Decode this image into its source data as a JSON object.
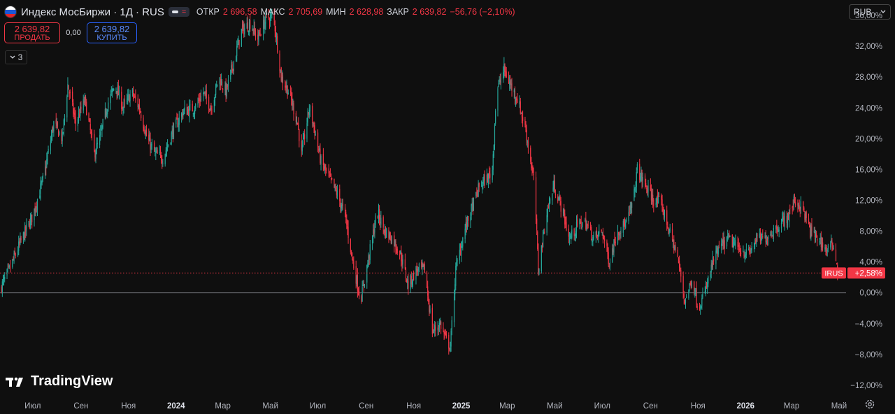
{
  "header": {
    "symbol_title": "Индекс МосБиржи · 1Д · RUS",
    "ohlc": [
      {
        "label": "ОТКР",
        "value": "2 696,58"
      },
      {
        "label": "МАКС",
        "value": "2 705,69"
      },
      {
        "label": "МИН",
        "value": "2 628,98"
      },
      {
        "label": "ЗАКР",
        "value": "2 639,82"
      }
    ],
    "change": "−56,76 (−2,10%)",
    "pill_icon": "compare-icon",
    "pill_symbol": "≈"
  },
  "trade": {
    "sell_price": "2 639,82",
    "sell_label": "ПРОДАТЬ",
    "spread": "0,00",
    "buy_price": "2 639,82",
    "buy_label": "КУПИТЬ"
  },
  "indicators_count": "3",
  "currency": "RUB",
  "branding": "TradingView",
  "colors": {
    "up": "#26a69a",
    "down": "#f23645",
    "background": "#0f0f0f",
    "last_price": "#f23645"
  },
  "chart_data": {
    "type": "candlestick",
    "symbol": "IRUS",
    "last_value_label": "+2,58%",
    "y_axis": {
      "unit": "%",
      "range": [
        -13,
        38
      ],
      "ticks": [
        -12,
        -8,
        -4,
        0,
        4,
        8,
        12,
        16,
        20,
        24,
        28,
        32,
        36
      ],
      "tick_labels": [
        "−12,00%",
        "−8,00%",
        "−4,00%",
        "0,00%",
        "4,00%",
        "8,00%",
        "12,00%",
        "16,00%",
        "20,00%",
        "24,00%",
        "28,00%",
        "32,00%",
        "36,00%"
      ]
    },
    "x_axis": {
      "range": [
        "2023-05-20",
        "2026-05-10"
      ],
      "ticks": [
        {
          "date": "2023-07-01",
          "label": "Июл",
          "bold": false
        },
        {
          "date": "2023-09-01",
          "label": "Сен",
          "bold": false
        },
        {
          "date": "2023-11-01",
          "label": "Ноя",
          "bold": false
        },
        {
          "date": "2024-01-01",
          "label": "2024",
          "bold": true
        },
        {
          "date": "2024-03-01",
          "label": "Мар",
          "bold": false
        },
        {
          "date": "2024-05-01",
          "label": "Май",
          "bold": false
        },
        {
          "date": "2024-07-01",
          "label": "Июл",
          "bold": false
        },
        {
          "date": "2024-09-01",
          "label": "Сен",
          "bold": false
        },
        {
          "date": "2024-11-01",
          "label": "Ноя",
          "bold": false
        },
        {
          "date": "2025-01-01",
          "label": "2025",
          "bold": true
        },
        {
          "date": "2025-03-01",
          "label": "Мар",
          "bold": false
        },
        {
          "date": "2025-05-01",
          "label": "Май",
          "bold": false
        },
        {
          "date": "2025-07-01",
          "label": "Июл",
          "bold": false
        },
        {
          "date": "2025-09-01",
          "label": "Сен",
          "bold": false
        },
        {
          "date": "2025-11-01",
          "label": "Ноя",
          "bold": false
        },
        {
          "date": "2026-01-01",
          "label": "2026",
          "bold": true
        },
        {
          "date": "2026-03-01",
          "label": "Мар",
          "bold": false
        },
        {
          "date": "2026-05-01",
          "label": "Май",
          "bold": false
        }
      ]
    },
    "baseline": 0,
    "last_value": 2.58,
    "close_path": [
      [
        "2023-05-20",
        0.5
      ],
      [
        "2023-06-01",
        3
      ],
      [
        "2023-06-15",
        6.5
      ],
      [
        "2023-07-01",
        10
      ],
      [
        "2023-07-15",
        15
      ],
      [
        "2023-07-28",
        22
      ],
      [
        "2023-08-08",
        20
      ],
      [
        "2023-08-15",
        27
      ],
      [
        "2023-08-25",
        22
      ],
      [
        "2023-09-06",
        25
      ],
      [
        "2023-09-18",
        18
      ],
      [
        "2023-09-25",
        20
      ],
      [
        "2023-10-05",
        24.5
      ],
      [
        "2023-10-15",
        27
      ],
      [
        "2023-10-25",
        24
      ],
      [
        "2023-11-05",
        26
      ],
      [
        "2023-11-15",
        24
      ],
      [
        "2023-11-25",
        20
      ],
      [
        "2023-12-05",
        18
      ],
      [
        "2023-12-15",
        17.5
      ],
      [
        "2023-12-28",
        21
      ],
      [
        "2024-01-10",
        23.5
      ],
      [
        "2024-01-25",
        24
      ],
      [
        "2024-02-05",
        26
      ],
      [
        "2024-02-15",
        24
      ],
      [
        "2024-02-25",
        28
      ],
      [
        "2024-03-05",
        26
      ],
      [
        "2024-03-15",
        30
      ],
      [
        "2024-03-25",
        34
      ],
      [
        "2024-04-05",
        35
      ],
      [
        "2024-04-15",
        33
      ],
      [
        "2024-04-25",
        35.5
      ],
      [
        "2024-05-05",
        36
      ],
      [
        "2024-05-15",
        28
      ],
      [
        "2024-05-25",
        26
      ],
      [
        "2024-06-05",
        22
      ],
      [
        "2024-06-10",
        18
      ],
      [
        "2024-06-20",
        24
      ],
      [
        "2024-06-25",
        22
      ],
      [
        "2024-07-05",
        17
      ],
      [
        "2024-07-15",
        15
      ],
      [
        "2024-07-25",
        13
      ],
      [
        "2024-08-05",
        10
      ],
      [
        "2024-08-15",
        4
      ],
      [
        "2024-08-25",
        -1
      ],
      [
        "2024-09-05",
        5
      ],
      [
        "2024-09-15",
        10.5
      ],
      [
        "2024-09-25",
        8
      ],
      [
        "2024-10-05",
        7
      ],
      [
        "2024-10-15",
        5
      ],
      [
        "2024-10-25",
        1
      ],
      [
        "2024-11-05",
        3
      ],
      [
        "2024-11-15",
        3
      ],
      [
        "2024-11-25",
        -5
      ],
      [
        "2024-12-05",
        -4
      ],
      [
        "2024-12-12",
        -6
      ],
      [
        "2024-12-18",
        -7
      ],
      [
        "2024-12-25",
        3
      ],
      [
        "2025-01-05",
        8
      ],
      [
        "2025-01-15",
        11
      ],
      [
        "2025-01-25",
        14
      ],
      [
        "2025-02-05",
        15
      ],
      [
        "2025-02-10",
        16
      ],
      [
        "2025-02-15",
        26
      ],
      [
        "2025-02-25",
        29
      ],
      [
        "2025-03-05",
        27
      ],
      [
        "2025-03-15",
        25
      ],
      [
        "2025-03-25",
        21
      ],
      [
        "2025-04-05",
        14
      ],
      [
        "2025-04-10",
        3
      ],
      [
        "2025-04-20",
        10
      ],
      [
        "2025-04-30",
        14
      ],
      [
        "2025-05-10",
        11
      ],
      [
        "2025-05-20",
        7
      ],
      [
        "2025-06-01",
        9
      ],
      [
        "2025-06-10",
        9
      ],
      [
        "2025-06-20",
        7
      ],
      [
        "2025-07-01",
        8
      ],
      [
        "2025-07-10",
        4
      ],
      [
        "2025-07-20",
        8
      ],
      [
        "2025-08-01",
        9
      ],
      [
        "2025-08-10",
        12
      ],
      [
        "2025-08-15",
        16
      ],
      [
        "2025-08-25",
        14
      ],
      [
        "2025-09-05",
        12
      ],
      [
        "2025-09-15",
        11.5
      ],
      [
        "2025-09-25",
        8
      ],
      [
        "2025-10-05",
        5
      ],
      [
        "2025-10-15",
        -1
      ],
      [
        "2025-10-25",
        2
      ],
      [
        "2025-11-01",
        -2
      ],
      [
        "2025-11-10",
        0
      ],
      [
        "2025-11-20",
        4
      ],
      [
        "2025-11-30",
        6
      ],
      [
        "2025-12-10",
        7
      ],
      [
        "2025-12-20",
        6
      ],
      [
        "2026-01-05",
        5
      ],
      [
        "2026-01-15",
        7
      ],
      [
        "2026-01-25",
        7
      ],
      [
        "2026-02-05",
        8
      ],
      [
        "2026-02-15",
        9
      ],
      [
        "2026-02-25",
        10
      ],
      [
        "2026-03-05",
        12
      ],
      [
        "2026-03-15",
        11
      ],
      [
        "2026-03-25",
        8
      ],
      [
        "2026-04-05",
        7
      ],
      [
        "2026-04-15",
        5.5
      ],
      [
        "2026-04-25",
        6.5
      ],
      [
        "2026-04-29",
        2.58
      ]
    ]
  }
}
